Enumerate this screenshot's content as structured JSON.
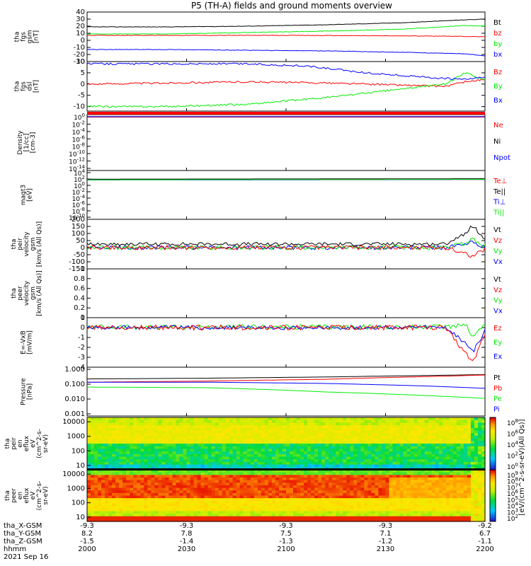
{
  "title": "P5 (TH-A) fields and ground moments overview",
  "colors": {
    "black": "#000000",
    "red": "#ff0000",
    "green": "#00ee00",
    "blue": "#0000ff"
  },
  "chart_data": [
    {
      "type": "line",
      "panel": "fgs_gsm",
      "ylabel": [
        "tha",
        "fgs",
        "gsm",
        "[nT]"
      ],
      "yticks": [
        -30,
        -20,
        -10,
        0,
        10,
        20,
        30,
        40
      ],
      "ylim": [
        -30,
        40
      ],
      "legend": [
        {
          "label": "Bt",
          "color": "#000000"
        },
        {
          "label": "bz",
          "color": "#ff0000"
        },
        {
          "label": "by",
          "color": "#00ee00"
        },
        {
          "label": "bx",
          "color": "#0000ff"
        }
      ],
      "series": [
        {
          "name": "Bt",
          "color": "#000000",
          "x": [
            0,
            0.2,
            0.4,
            0.6,
            0.8,
            0.95,
            1
          ],
          "y": [
            19,
            19,
            20,
            22,
            25,
            29,
            30
          ],
          "noise": 0.3
        },
        {
          "name": "bz",
          "color": "#ff0000",
          "x": [
            0,
            0.5,
            0.9,
            1
          ],
          "y": [
            7,
            7,
            6,
            5
          ],
          "noise": 0.3
        },
        {
          "name": "by",
          "color": "#00ee00",
          "x": [
            0,
            0.2,
            0.4,
            0.6,
            0.8,
            0.95,
            1
          ],
          "y": [
            9,
            9,
            11,
            13,
            16,
            21,
            20
          ],
          "noise": 0.3
        },
        {
          "name": "bx",
          "color": "#0000ff",
          "x": [
            0,
            0.2,
            0.4,
            0.6,
            0.8,
            0.95,
            1
          ],
          "y": [
            -13,
            -13,
            -14,
            -15,
            -17,
            -19,
            -22
          ],
          "noise": 0.3
        }
      ]
    },
    {
      "type": "line",
      "panel": "fgs_dsl",
      "ylabel": [
        "tha",
        "fgs",
        "dsl",
        "[nT]"
      ],
      "yticks": [
        -10,
        -5,
        0,
        5,
        10
      ],
      "ylim": [
        -12,
        10
      ],
      "legend": [
        {
          "label": "Bz",
          "color": "#ff0000"
        },
        {
          "label": "By",
          "color": "#00ee00"
        },
        {
          "label": "Bx",
          "color": "#0000ff"
        }
      ],
      "series": [
        {
          "name": "Bz",
          "color": "#ff0000",
          "x": [
            0,
            0.2,
            0.4,
            0.6,
            0.8,
            0.9,
            0.95,
            1
          ],
          "y": [
            0,
            0.5,
            1,
            0.5,
            -0.5,
            -1,
            1,
            2
          ],
          "noise": 0.4
        },
        {
          "name": "By",
          "color": "#00ee00",
          "x": [
            0,
            0.2,
            0.4,
            0.6,
            0.75,
            0.9,
            0.95,
            1
          ],
          "y": [
            -10,
            -10,
            -9,
            -6,
            -3,
            0,
            5,
            2
          ],
          "noise": 0.4
        },
        {
          "name": "Bx",
          "color": "#0000ff",
          "x": [
            0,
            0.2,
            0.4,
            0.55,
            0.7,
            0.85,
            0.95,
            1
          ],
          "y": [
            9,
            9,
            9,
            8,
            5,
            3,
            2,
            3
          ],
          "noise": 0.4
        }
      ]
    },
    {
      "type": "line",
      "panel": "density",
      "ylabel": [
        "Density",
        "[1/cc]",
        "[cm-3]"
      ],
      "yticks": [
        "10^0",
        "10^-2",
        "10^-4",
        "10^-6",
        "10^-8",
        "10^-10",
        "10^-12",
        "10^-14"
      ],
      "legend": [
        {
          "label": "Ne",
          "color": "#ff0000"
        },
        {
          "label": "Ni",
          "color": "#000000"
        },
        {
          "label": "Npot",
          "color": "#0000ff"
        }
      ],
      "series": [
        {
          "name": "Ne",
          "color": "#ff0000",
          "x": [
            0,
            1
          ],
          "y": [
            0.5,
            0.5
          ]
        },
        {
          "name": "Ni",
          "color": "#000000",
          "x": [
            0,
            1
          ],
          "y": [
            0.3,
            0.3
          ]
        },
        {
          "name": "Npot",
          "color": "#0000ff",
          "x": [
            0,
            1
          ],
          "y": [
            0.3,
            0.3
          ]
        }
      ]
    },
    {
      "type": "line",
      "panel": "temperature",
      "ylabel": [
        "magt3",
        "[eV]"
      ],
      "yticks": [
        "10^4",
        "10^2",
        "10^0",
        "10^-2",
        "10^-4",
        "10^-6",
        "10^-8",
        "10^-10"
      ],
      "legend": [
        {
          "label": "Te⊥",
          "color": "#ff0000"
        },
        {
          "label": "Te||",
          "color": "#000000"
        },
        {
          "label": "Ti⊥",
          "color": "#0000ff"
        },
        {
          "label": "Ti||",
          "color": "#00ee00"
        }
      ],
      "series": [
        {
          "name": "Te⊥",
          "color": "#ff0000",
          "x": [
            0,
            1
          ],
          "y": [
            3.5,
            3.3
          ]
        },
        {
          "name": "Te||",
          "color": "#000000",
          "x": [
            0,
            1
          ],
          "y": [
            3.4,
            3.2
          ]
        },
        {
          "name": "Ti⊥",
          "color": "#0000ff",
          "x": [
            0,
            1
          ],
          "y": [
            3.8,
            3.6
          ]
        },
        {
          "name": "Ti||",
          "color": "#00ee00",
          "x": [
            0,
            1
          ],
          "y": [
            3.7,
            3.5
          ]
        }
      ]
    },
    {
      "type": "line",
      "panel": "peir_velocity",
      "ylabel": [
        "tha",
        "peir",
        "velocity",
        "gsm",
        "[km/s (All Qs)]"
      ],
      "yticks": [
        -150,
        -100,
        -50,
        0,
        50,
        100,
        150,
        200
      ],
      "ylim": [
        -150,
        200
      ],
      "legend": [
        {
          "label": "Vt",
          "color": "#000000"
        },
        {
          "label": "Vz",
          "color": "#ff0000"
        },
        {
          "label": "Vy",
          "color": "#00ee00"
        },
        {
          "label": "Vx",
          "color": "#0000ff"
        }
      ],
      "series": [
        {
          "name": "Vx",
          "color": "#0000ff",
          "x": [
            0,
            0.9,
            0.95,
            0.97,
            1
          ],
          "y": [
            0,
            0,
            20,
            40,
            0
          ],
          "noise": 15
        },
        {
          "name": "Vy",
          "color": "#00ee00",
          "x": [
            0,
            0.9,
            0.95,
            0.97,
            1
          ],
          "y": [
            0,
            0,
            30,
            60,
            10
          ],
          "noise": 15
        },
        {
          "name": "Vz",
          "color": "#ff0000",
          "x": [
            0,
            0.9,
            0.95,
            0.97,
            1
          ],
          "y": [
            0,
            0,
            -40,
            -60,
            -10
          ],
          "noise": 15
        },
        {
          "name": "Vt",
          "color": "#000000",
          "x": [
            0,
            0.9,
            0.95,
            0.97,
            1
          ],
          "y": [
            25,
            25,
            100,
            160,
            50
          ],
          "noise": 12
        }
      ]
    },
    {
      "type": "line",
      "panel": "peer_velocity",
      "ylabel": [
        "tha",
        "peer",
        "velocity",
        "gsm",
        "[km/s (All Qs)]"
      ],
      "yticks": [
        0.0,
        0.2,
        0.4,
        0.6,
        0.8,
        1.0
      ],
      "ylim": [
        0,
        1
      ],
      "legend": [
        {
          "label": "Vt",
          "color": "#000000"
        },
        {
          "label": "Vz",
          "color": "#ff0000"
        },
        {
          "label": "Vy",
          "color": "#00ee00"
        },
        {
          "label": "Vx",
          "color": "#0000ff"
        }
      ],
      "series": []
    },
    {
      "type": "line",
      "panel": "efield",
      "ylabel": [
        "E=-VxB",
        "[mV/m]"
      ],
      "yticks": [
        -4,
        -3,
        -2,
        -1,
        0,
        1
      ],
      "ylim": [
        -4,
        1
      ],
      "legend": [
        {
          "label": "Ez",
          "color": "#ff0000"
        },
        {
          "label": "Ey",
          "color": "#00ee00"
        },
        {
          "label": "Ex",
          "color": "#0000ff"
        }
      ],
      "series": [
        {
          "name": "Ey",
          "color": "#00ee00",
          "x": [
            0,
            0.9,
            0.95,
            0.97,
            1
          ],
          "y": [
            0.05,
            0.05,
            0.4,
            -1,
            0.4
          ],
          "noise": 0.25
        },
        {
          "name": "Ex",
          "color": "#0000ff",
          "x": [
            0,
            0.9,
            0.95,
            0.97,
            1
          ],
          "y": [
            0,
            0,
            -1.5,
            -2.5,
            -0.3
          ],
          "noise": 0.2
        },
        {
          "name": "Ez",
          "color": "#ff0000",
          "x": [
            0,
            0.9,
            0.95,
            0.97,
            1
          ],
          "y": [
            0,
            0,
            -2.5,
            -3.5,
            -0.5
          ],
          "noise": 0.25
        }
      ]
    },
    {
      "type": "line",
      "panel": "pressure",
      "ylabel": [
        "Pressure",
        "[nPa]"
      ],
      "yticks": [
        "1.000",
        "0.100",
        "0.010",
        "0.001"
      ],
      "log": true,
      "ylim": [
        0.001,
        1
      ],
      "legend": [
        {
          "label": "Pt",
          "color": "#000000"
        },
        {
          "label": "Pb",
          "color": "#ff0000"
        },
        {
          "label": "Pe",
          "color": "#00ee00"
        },
        {
          "label": "Pi",
          "color": "#0000ff"
        }
      ],
      "series": [
        {
          "name": "Pt",
          "color": "#000000",
          "x": [
            0,
            0.3,
            0.6,
            0.9,
            1
          ],
          "y": [
            0.19,
            0.21,
            0.25,
            0.32,
            0.35
          ]
        },
        {
          "name": "Pb",
          "color": "#ff0000",
          "x": [
            0,
            0.3,
            0.6,
            0.9,
            1
          ],
          "y": [
            0.12,
            0.14,
            0.18,
            0.28,
            0.33
          ]
        },
        {
          "name": "Pi",
          "color": "#0000ff",
          "x": [
            0,
            0.3,
            0.6,
            0.85,
            1
          ],
          "y": [
            0.12,
            0.12,
            0.1,
            0.07,
            0.05
          ]
        },
        {
          "name": "Pe",
          "color": "#00ee00",
          "x": [
            0,
            0.3,
            0.6,
            0.85,
            1
          ],
          "y": [
            0.06,
            0.055,
            0.03,
            0.018,
            0.012
          ]
        }
      ]
    },
    {
      "type": "heatmap",
      "panel": "peir_spectrum",
      "ylabel": [
        "tha",
        "peir",
        "en",
        "eflux",
        "eV",
        "(cm^2-s-",
        "sr-eV)"
      ],
      "yticks": [
        10,
        100,
        1000,
        10000
      ],
      "colorbar": [
        "10^8",
        "10^6",
        "10^4",
        "10^2",
        "10^0"
      ]
    },
    {
      "type": "heatmap",
      "panel": "peer_spectrum",
      "ylabel": [
        "tha",
        "peer",
        "en",
        "eflux",
        "eV",
        "(cm^2-s-",
        "sr-eV)"
      ],
      "yticks": [
        10,
        100,
        1000,
        10000
      ],
      "colorbar": [
        "10^9",
        "10^8",
        "10^7",
        "10^6",
        "10^5",
        "10^4",
        "10^3",
        "10^2"
      ],
      "colorbar_label": "[eV/(cm^2-s-sr-eV)(All Qs)]"
    }
  ],
  "x_axis": {
    "rows": [
      {
        "label": "tha_X-GSM",
        "values": [
          "-9.3",
          "-9.3",
          "-9.3",
          "-9.3",
          "-9.2"
        ]
      },
      {
        "label": "tha_Y-GSM",
        "values": [
          "8.2",
          "7.8",
          "7.5",
          "7.1",
          "6.7"
        ]
      },
      {
        "label": "tha_Z-GSM",
        "values": [
          "-1.5",
          "-1.4",
          "-1.3",
          "-1.2",
          "-1.1"
        ]
      },
      {
        "label": "hhmm",
        "values": [
          "2000",
          "2030",
          "2100",
          "2130",
          "2200"
        ]
      }
    ],
    "date": "2021 Sep 16"
  }
}
